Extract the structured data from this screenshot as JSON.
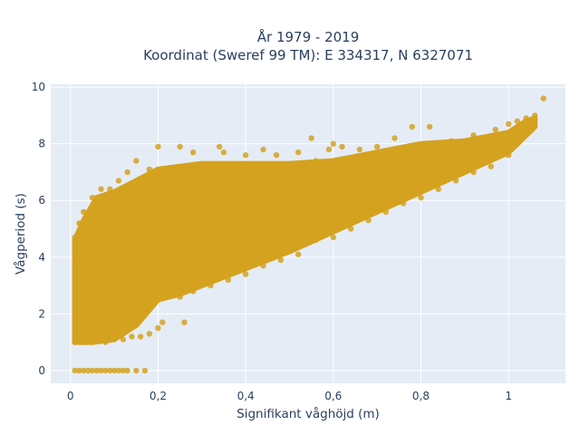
{
  "chart_data": {
    "type": "scatter",
    "title_line1": "År 1979 - 2019",
    "title_line2": "Koordinat (Sweref 99 TM): E 334317, N 6327071",
    "xlabel": "Signifikant våghöjd (m)",
    "ylabel": "Vågperiod (s)",
    "xlim": [
      -0.045,
      1.13
    ],
    "ylim": [
      -0.45,
      10.1
    ],
    "x_ticks": [
      0,
      0.2,
      0.4,
      0.6,
      0.8,
      1
    ],
    "x_tick_labels": [
      "0",
      "0,2",
      "0,4",
      "0,6",
      "0,8",
      "1"
    ],
    "y_ticks": [
      0,
      2,
      4,
      6,
      8,
      10
    ],
    "y_tick_labels": [
      "0",
      "2",
      "4",
      "6",
      "8",
      "10"
    ],
    "grid": true,
    "legend": "none",
    "colors": {
      "marker": "#D4A21E",
      "plot_background": "#E5ECF6",
      "grid": "#FFFFFF",
      "text": "#2A3F5F"
    },
    "series": [
      {
        "values_note": "",
        "points": [
          [
            0.01,
            0
          ],
          [
            0.02,
            0
          ],
          [
            0.03,
            0
          ],
          [
            0.04,
            0
          ],
          [
            0.05,
            0
          ],
          [
            0.06,
            0
          ],
          [
            0.07,
            0
          ],
          [
            0.08,
            0
          ],
          [
            0.09,
            0
          ],
          [
            0.1,
            0
          ],
          [
            0.11,
            0
          ],
          [
            0.12,
            0
          ],
          [
            0.13,
            0
          ],
          [
            0.15,
            0
          ],
          [
            0.17,
            0
          ],
          [
            0.01,
            4.7
          ],
          [
            0.02,
            5.2
          ],
          [
            0.03,
            5.6
          ],
          [
            0.05,
            6.1
          ],
          [
            0.07,
            6.4
          ],
          [
            0.09,
            6.4
          ],
          [
            0.11,
            6.7
          ],
          [
            0.13,
            7.0
          ],
          [
            0.15,
            7.4
          ],
          [
            0.18,
            7.1
          ],
          [
            0.2,
            7.9
          ],
          [
            0.25,
            7.9
          ],
          [
            0.28,
            7.7
          ],
          [
            0.35,
            7.7
          ],
          [
            0.4,
            7.6
          ],
          [
            0.44,
            7.8
          ],
          [
            0.47,
            7.6
          ],
          [
            0.52,
            7.7
          ],
          [
            0.56,
            7.4
          ],
          [
            0.59,
            7.8
          ],
          [
            0.62,
            7.9
          ],
          [
            0.66,
            7.8
          ],
          [
            0.7,
            7.9
          ],
          [
            0.74,
            8.2
          ],
          [
            0.78,
            8.6
          ],
          [
            0.82,
            8.6
          ],
          [
            0.87,
            8.1
          ],
          [
            0.92,
            8.3
          ],
          [
            0.97,
            8.5
          ],
          [
            1.0,
            8.7
          ],
          [
            1.02,
            8.8
          ],
          [
            1.04,
            8.9
          ],
          [
            1.06,
            9.0
          ],
          [
            1.08,
            9.6
          ],
          [
            0.55,
            8.2
          ],
          [
            0.6,
            8.0
          ],
          [
            0.34,
            7.9
          ],
          [
            0.01,
            1.0
          ],
          [
            0.03,
            1.0
          ],
          [
            0.05,
            1.0
          ],
          [
            0.08,
            1.0
          ],
          [
            0.1,
            1.1
          ],
          [
            0.12,
            1.1
          ],
          [
            0.14,
            1.2
          ],
          [
            0.16,
            1.2
          ],
          [
            0.18,
            1.3
          ],
          [
            0.2,
            1.5
          ],
          [
            0.21,
            1.7
          ],
          [
            0.26,
            1.7
          ],
          [
            0.15,
            2.6
          ],
          [
            0.2,
            2.6
          ],
          [
            0.25,
            2.6
          ],
          [
            0.28,
            2.8
          ],
          [
            0.32,
            3.0
          ],
          [
            0.36,
            3.2
          ],
          [
            0.4,
            3.4
          ],
          [
            0.44,
            3.7
          ],
          [
            0.48,
            3.9
          ],
          [
            0.52,
            4.1
          ],
          [
            0.56,
            4.6
          ],
          [
            0.6,
            4.7
          ],
          [
            0.64,
            5.0
          ],
          [
            0.68,
            5.3
          ],
          [
            0.72,
            5.6
          ],
          [
            0.76,
            5.9
          ],
          [
            0.8,
            6.1
          ],
          [
            0.84,
            6.4
          ],
          [
            0.88,
            6.7
          ],
          [
            0.92,
            7.0
          ],
          [
            0.96,
            7.2
          ],
          [
            1.0,
            7.6
          ],
          [
            1.02,
            8.0
          ]
        ]
      }
    ]
  }
}
